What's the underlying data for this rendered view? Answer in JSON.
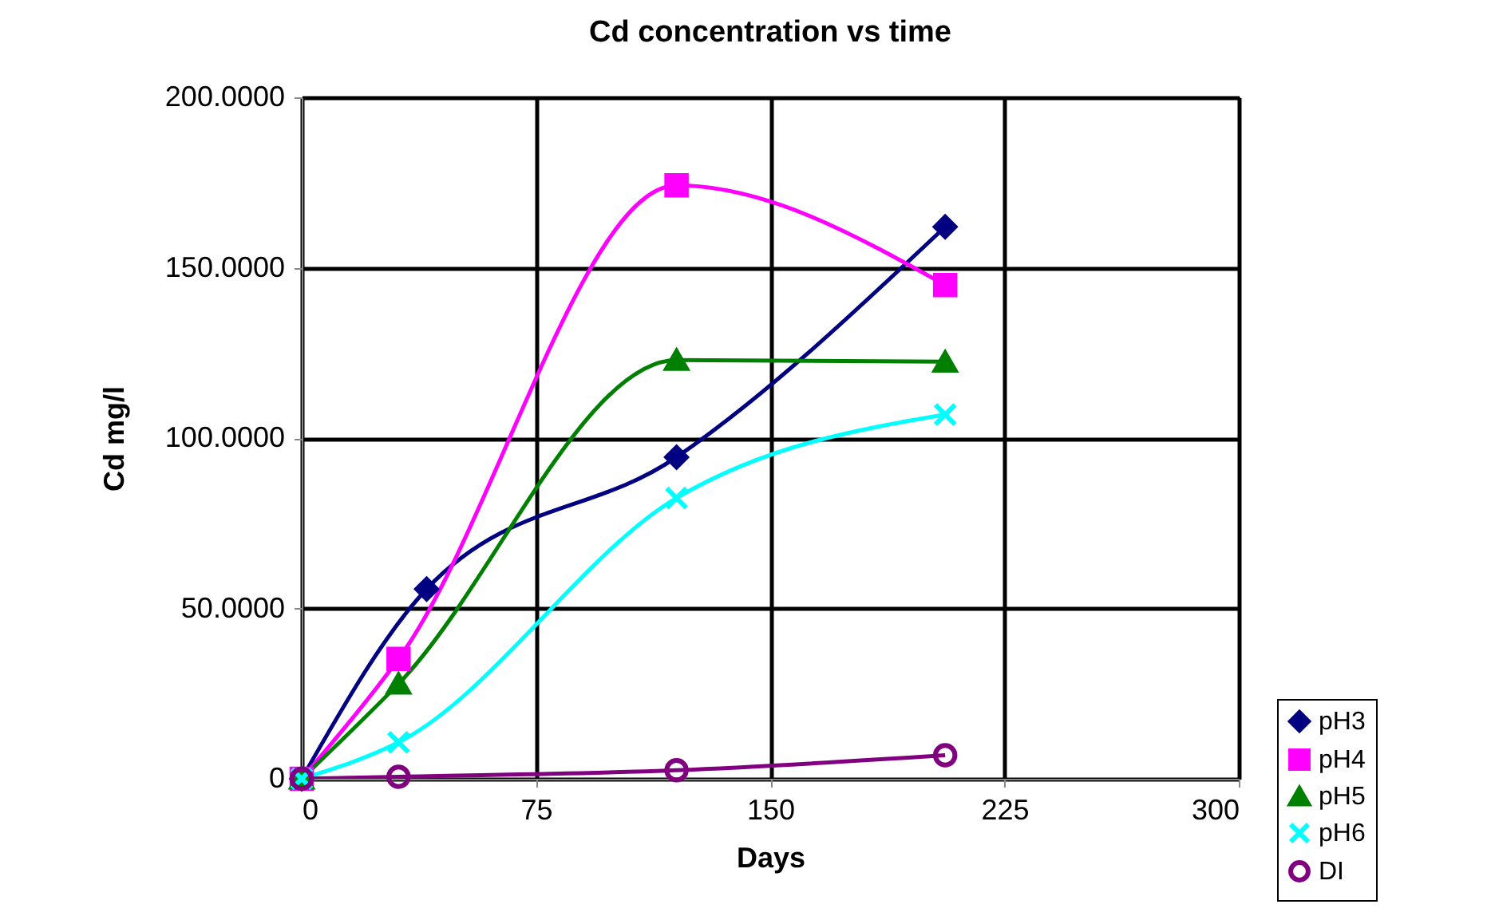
{
  "chart_data": {
    "type": "line",
    "title": "Cd concentration vs time",
    "xlabel": "Days",
    "ylabel": "Cd mg/l",
    "xlim": [
      0,
      300
    ],
    "xticks": [
      0,
      75,
      150,
      225,
      300
    ],
    "ylim": [
      0,
      200
    ],
    "yticks": [
      0,
      {
        "value": 50,
        "label": "50.0000"
      },
      {
        "value": 100,
        "label": "100.0000"
      },
      {
        "value": 150,
        "label": "150.0000"
      },
      {
        "value": 200,
        "label": "200.0000"
      }
    ],
    "grid": true,
    "legend": "bottom right",
    "series": [
      {
        "name": "pH3",
        "color": "#000080",
        "marker": "diamond",
        "x": [
          0,
          40,
          120,
          206
        ],
        "values": [
          0,
          55.7,
          94.4,
          162
        ]
      },
      {
        "name": "pH4",
        "color": "#ff00ff",
        "marker": "square",
        "x": [
          0,
          31,
          120,
          206
        ],
        "values": [
          0,
          35.2,
          174.2,
          144.9
        ]
      },
      {
        "name": "pH5",
        "color": "#008000",
        "marker": "triangle",
        "x": [
          0,
          31,
          120,
          206
        ],
        "values": [
          0,
          27.9,
          122.9,
          122.4
        ]
      },
      {
        "name": "pH6",
        "color": "#00ffff",
        "marker": "cross",
        "x": [
          0,
          31,
          120,
          206
        ],
        "values": [
          0,
          10.7,
          82.4,
          106.9
        ]
      },
      {
        "name": "DI",
        "color": "#800080",
        "marker": "circle",
        "x": [
          0,
          31,
          120,
          206
        ],
        "values": [
          0,
          0.6,
          2.5,
          6.9
        ]
      }
    ]
  }
}
